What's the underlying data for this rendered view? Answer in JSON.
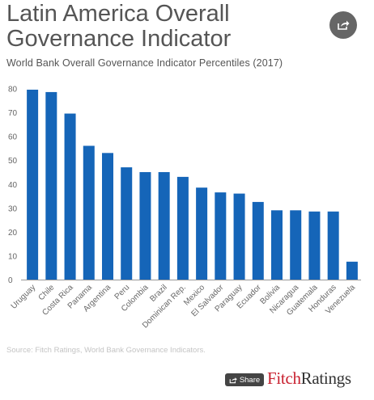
{
  "header": {
    "title": "Latin America Overall Governance Indicator",
    "subtitle": "World Bank Overall Governance Indicator Percentiles (2017)"
  },
  "source": "Source: Fitch Ratings, World Bank Governance Indicators.",
  "footer": {
    "share_label": "Share",
    "brand_prefix": "Fitch",
    "brand_suffix": "Ratings"
  },
  "icons": {
    "top_share": "share-icon",
    "footer_share": "share-icon"
  },
  "colors": {
    "bar": "#1565b8",
    "brand_red": "#c8202f"
  },
  "chart_data": {
    "type": "bar",
    "title": "Latin America Overall Governance Indicator",
    "subtitle": "World Bank Overall Governance Indicator Percentiles (2017)",
    "categories": [
      "Uruguay",
      "Chile",
      "Costa Rica",
      "Panama",
      "Argentina",
      "Peru",
      "Colombia",
      "Brazil",
      "Dominican Rep.",
      "Mexico",
      "El Salvador",
      "Paraguay",
      "Ecuador",
      "Bolivia",
      "Nicaragua",
      "Guatemala",
      "Honduras",
      "Venezuela"
    ],
    "values": [
      79.5,
      78.5,
      69.5,
      56.0,
      53.0,
      47.0,
      45.0,
      45.0,
      43.0,
      38.5,
      36.5,
      36.0,
      32.5,
      29.0,
      29.0,
      28.5,
      28.5,
      7.5
    ],
    "yticks": [
      0,
      10,
      20,
      30,
      40,
      50,
      60,
      70,
      80
    ],
    "ylim": [
      0,
      82
    ],
    "xlabel": "",
    "ylabel": "",
    "grid": false,
    "legend": "none"
  }
}
